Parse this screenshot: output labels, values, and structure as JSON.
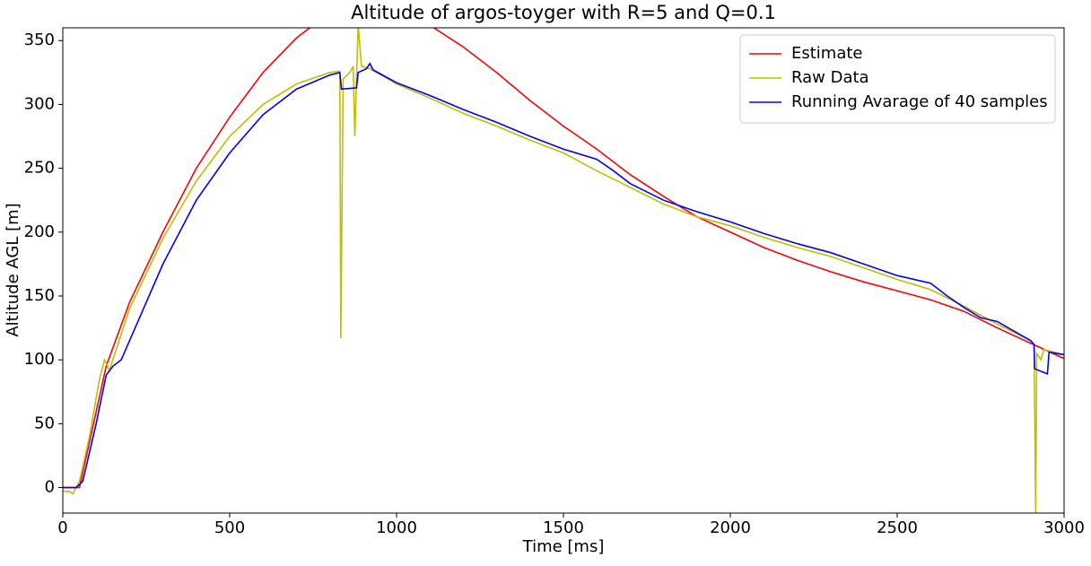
{
  "chart_data": {
    "type": "line",
    "title": "Altitude of argos-toyger with R=5 and Q=0.1",
    "xlabel": "Time [ms]",
    "ylabel": "Altitude AGL [m]",
    "xlim": [
      0,
      3000
    ],
    "ylim": [
      -20,
      360
    ],
    "xticks": [
      0,
      500,
      1000,
      1500,
      2000,
      2500,
      3000
    ],
    "yticks": [
      0,
      50,
      100,
      150,
      200,
      250,
      300,
      350
    ],
    "grid": false,
    "legend": "upper right",
    "series": [
      {
        "name": "Estimate",
        "color": "#ff0000",
        "x": [
          0,
          50,
          130,
          200,
          300,
          400,
          500,
          600,
          700,
          750,
          800,
          900,
          1000,
          1100,
          1200,
          1300,
          1400,
          1500,
          1600,
          1700,
          1800,
          1900,
          2000,
          2100,
          2200,
          2300,
          2400,
          2500,
          2600,
          2700,
          2800,
          2900,
          3000
        ],
        "values": [
          0,
          0,
          95,
          145,
          200,
          250,
          290,
          325,
          352,
          362,
          372,
          380,
          375,
          362,
          345,
          325,
          303,
          283,
          265,
          245,
          228,
          212,
          200,
          188,
          178,
          169,
          161,
          154,
          147,
          138,
          125,
          113,
          101
        ]
      },
      {
        "name": "Raw Data",
        "color": "#bfbf00",
        "x": [
          0,
          20,
          30,
          50,
          80,
          110,
          125,
          140,
          200,
          300,
          400,
          500,
          600,
          700,
          800,
          830,
          833,
          840,
          860,
          870,
          875,
          880,
          885,
          895,
          920,
          1000,
          1100,
          1200,
          1300,
          1400,
          1500,
          1600,
          1700,
          1800,
          1900,
          2000,
          2100,
          2200,
          2300,
          2400,
          2500,
          2600,
          2700,
          2800,
          2900,
          2910,
          2915,
          2918,
          2930,
          2940,
          3000
        ],
        "values": [
          -3,
          -3,
          -5,
          5,
          40,
          85,
          100,
          92,
          140,
          195,
          240,
          275,
          300,
          316,
          325,
          326,
          117,
          320,
          325,
          330,
          275,
          320,
          362,
          330,
          328,
          316,
          305,
          293,
          283,
          272,
          262,
          248,
          235,
          222,
          212,
          205,
          196,
          188,
          181,
          172,
          163,
          155,
          142,
          128,
          115,
          112,
          -20,
          105,
          100,
          108,
          104
        ]
      },
      {
        "name": "Running Avarage of 40 samples",
        "color": "#0000ff",
        "x": [
          0,
          40,
          60,
          100,
          130,
          150,
          175,
          200,
          300,
          400,
          500,
          600,
          700,
          800,
          830,
          835,
          880,
          885,
          910,
          920,
          930,
          1000,
          1100,
          1200,
          1300,
          1400,
          1500,
          1600,
          1650,
          1700,
          1800,
          1900,
          2000,
          2100,
          2200,
          2300,
          2400,
          2500,
          2600,
          2650,
          2700,
          2750,
          2800,
          2900,
          2910,
          2912,
          2950,
          2955,
          3000
        ],
        "values": [
          0,
          0,
          5,
          50,
          88,
          95,
          100,
          115,
          175,
          225,
          262,
          292,
          312,
          323,
          325,
          312,
          313,
          325,
          328,
          332,
          327,
          317,
          307,
          296,
          286,
          275,
          265,
          257,
          248,
          238,
          225,
          216,
          208,
          199,
          191,
          184,
          175,
          166,
          160,
          150,
          141,
          133,
          130,
          115,
          112,
          93,
          89,
          106,
          104
        ]
      }
    ]
  }
}
